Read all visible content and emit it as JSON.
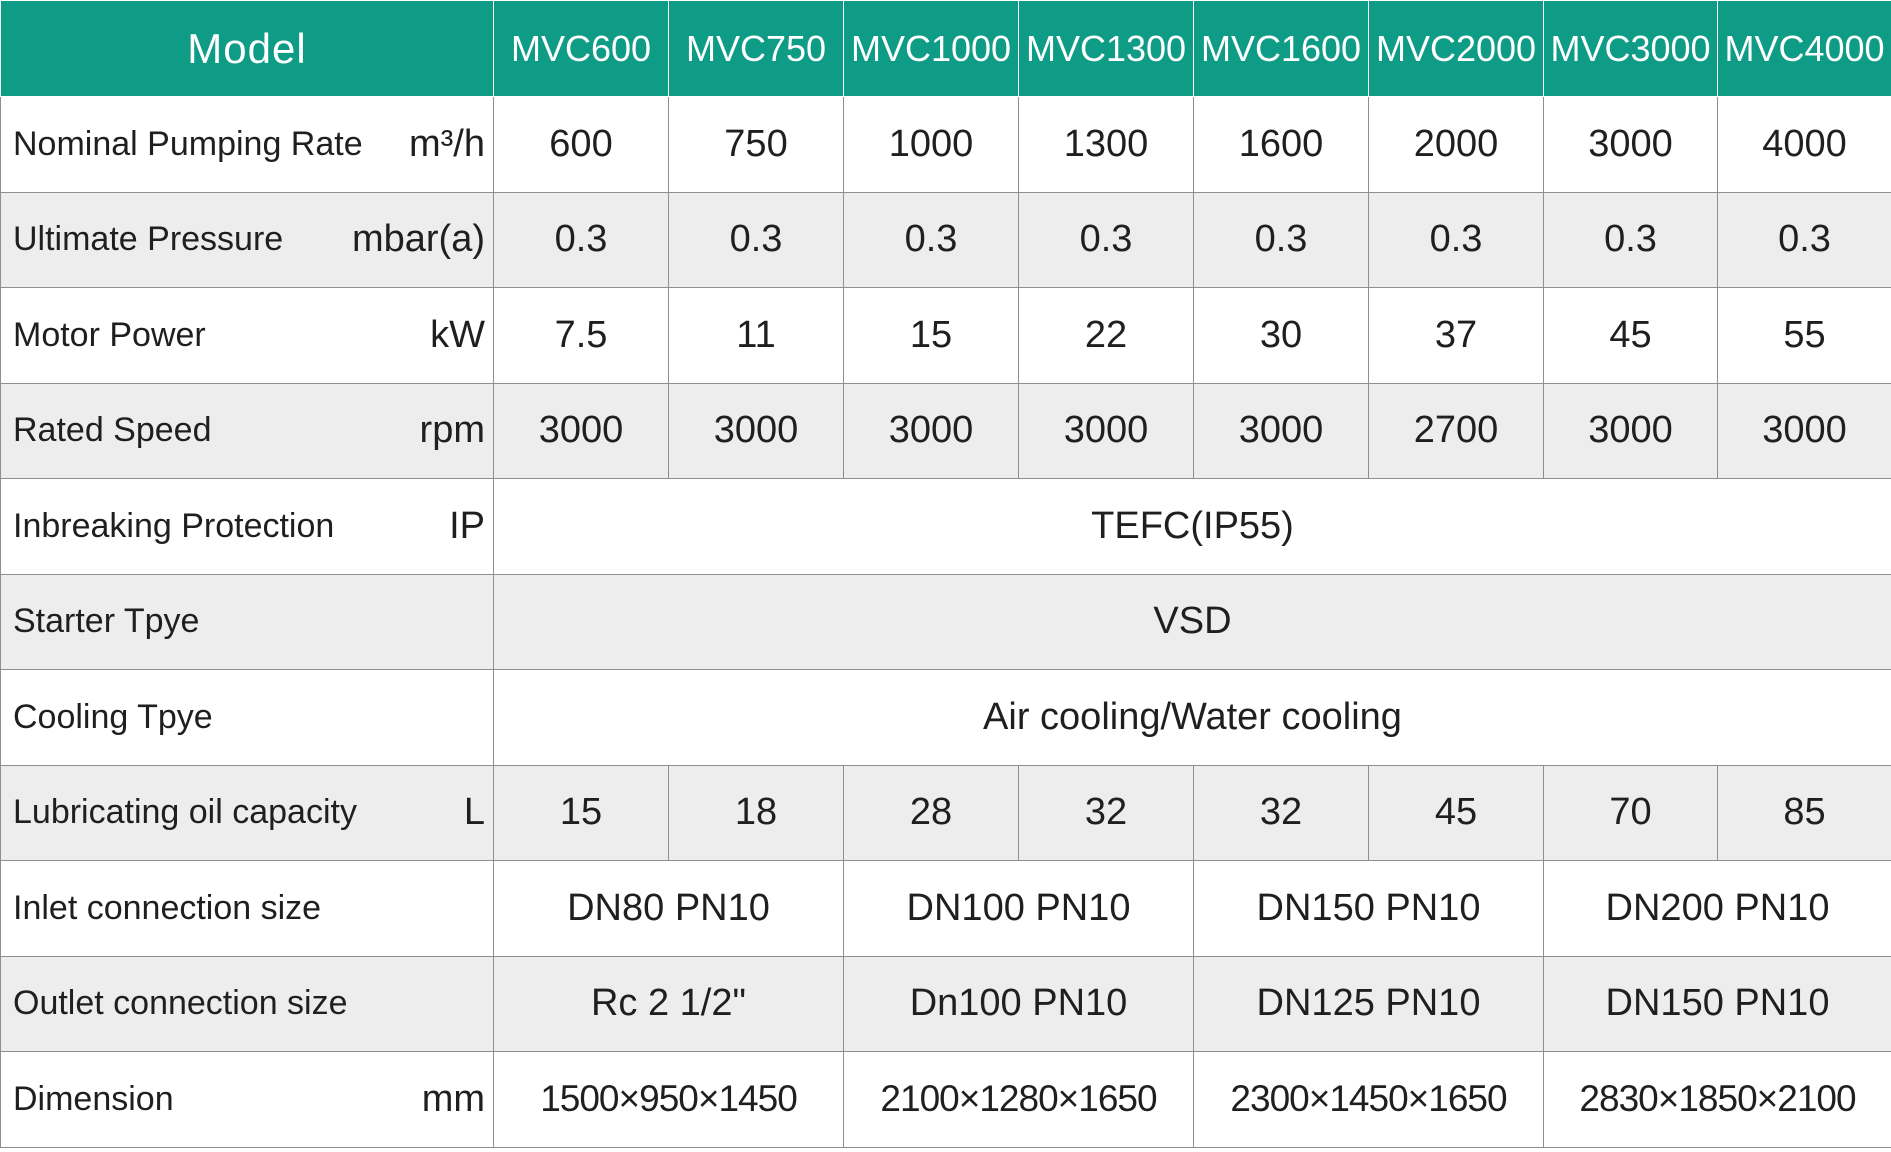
{
  "header": {
    "model_label": "Model",
    "models": [
      "MVC600",
      "MVC750",
      "MVC1000",
      "MVC1300",
      "MVC1600",
      "MVC2000",
      "MVC3000",
      "MVC4000"
    ]
  },
  "rows": {
    "pumping_rate": {
      "name": "Nominal Pumping Rate",
      "unit": "m³/h",
      "values": [
        "600",
        "750",
        "1000",
        "1300",
        "1600",
        "2000",
        "3000",
        "4000"
      ]
    },
    "ultimate_pressure": {
      "name": "Ultimate Pressure",
      "unit": "mbar(a)",
      "values": [
        "0.3",
        "0.3",
        "0.3",
        "0.3",
        "0.3",
        "0.3",
        "0.3",
        "0.3"
      ]
    },
    "motor_power": {
      "name": "Motor Power",
      "unit": "kW",
      "values": [
        "7.5",
        "11",
        "15",
        "22",
        "30",
        "37",
        "45",
        "55"
      ]
    },
    "rated_speed": {
      "name": "Rated Speed",
      "unit": "rpm",
      "values": [
        "3000",
        "3000",
        "3000",
        "3000",
        "3000",
        "2700",
        "3000",
        "3000"
      ]
    },
    "inbreaking_protection": {
      "name": "Inbreaking Protection",
      "unit": "IP",
      "value": "TEFC(IP55)"
    },
    "starter_type": {
      "name": "Starter Tpye",
      "value": "VSD"
    },
    "cooling_type": {
      "name": "Cooling Tpye",
      "value": "Air cooling/Water cooling"
    },
    "lubricating_oil": {
      "name": "Lubricating oil capacity",
      "unit": "L",
      "values": [
        "15",
        "18",
        "28",
        "32",
        "32",
        "45",
        "70",
        "85"
      ]
    },
    "inlet_size": {
      "name": "Inlet connection size",
      "values": [
        "DN80 PN10",
        "DN100 PN10",
        "DN150 PN10",
        "DN200 PN10"
      ]
    },
    "outlet_size": {
      "name": "Outlet connection size",
      "values": [
        "Rc 2  1/2\"",
        "Dn100 PN10",
        "DN125 PN10",
        "DN150 PN10"
      ]
    },
    "dimension": {
      "name": "Dimension",
      "unit": "mm",
      "values": [
        "1500×950×1450",
        "2100×1280×1650",
        "2300×1450×1650",
        "2830×1850×2100"
      ]
    }
  },
  "colors": {
    "header_bg": "#0e9c86",
    "row_grey": "#ededed",
    "border": "#8f8f8f"
  }
}
